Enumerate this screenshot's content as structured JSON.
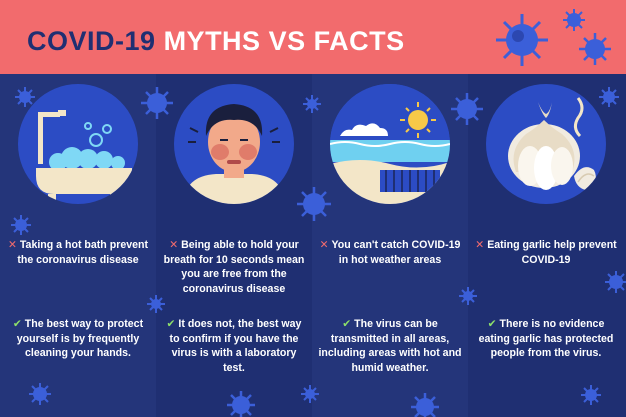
{
  "title": {
    "part1": "COVID-19",
    "part2": "MYTHS VS FACTS"
  },
  "colors": {
    "header": "#f26b6d",
    "background": "#1f2f72",
    "myth_mark": "#f26b6d",
    "fact_mark": "#8ee06a",
    "virus": "#3b5fd9"
  },
  "icons": {
    "myth": "cross-icon",
    "fact": "check-icon"
  },
  "columns": [
    {
      "illustration": "bathtub-illustration",
      "myth": "Taking a hot bath prevent the coronavirus disease",
      "fact": "The best way to protect yourself  is by frequently cleaning your hands."
    },
    {
      "illustration": "person-holding-breath-illustration",
      "myth": "Being able to hold your breath for 10 seconds mean you are free from the coronavirus disease",
      "fact": "It does not, the best way to confirm if you have the virus is with a laboratory test."
    },
    {
      "illustration": "beach-illustration",
      "myth": "You can't catch COVID-19 in hot weather areas",
      "fact": "The virus can be transmitted in all areas, including areas with hot and humid weather."
    },
    {
      "illustration": "garlic-illustration",
      "myth": "Eating garlic help prevent COVID-19",
      "fact": "There is no evidence eating garlic has protected people from the virus."
    }
  ]
}
